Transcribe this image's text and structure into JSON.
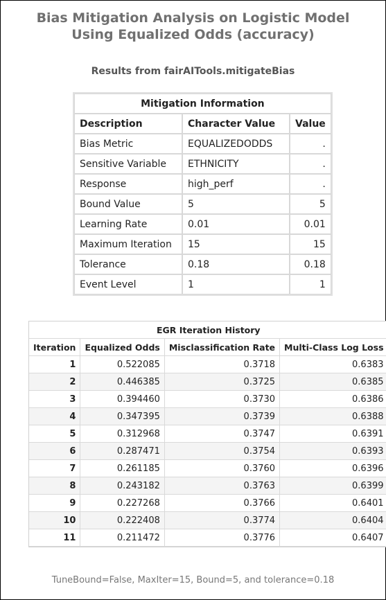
{
  "title_line1": "Bias Mitigation Analysis on Logistic Model",
  "title_line2": "Using Equalized Odds (accuracy)",
  "subtitle": "Results from fairAITools.mitigateBias",
  "mitigation": {
    "caption": "Mitigation Information",
    "headers": [
      "Description",
      "Character Value",
      "Value"
    ],
    "rows": [
      [
        "Bias Metric",
        "EQUALIZEDODDS",
        "."
      ],
      [
        "Sensitive Variable",
        "ETHNICITY",
        "."
      ],
      [
        "Response",
        "high_perf",
        "."
      ],
      [
        "Bound Value",
        "5",
        "5"
      ],
      [
        "Learning Rate",
        "0.01",
        "0.01"
      ],
      [
        "Maximum Iteration",
        "15",
        "15"
      ],
      [
        "Tolerance",
        "0.18",
        "0.18"
      ],
      [
        "Event Level",
        "1",
        "1"
      ]
    ]
  },
  "egr": {
    "caption": "EGR Iteration History",
    "headers": [
      "Iteration",
      "Equalized Odds",
      "Misclassification Rate",
      "Multi-Class Log Loss"
    ],
    "rows": [
      [
        "1",
        "0.522085",
        "0.3718",
        "0.6383"
      ],
      [
        "2",
        "0.446385",
        "0.3725",
        "0.6385"
      ],
      [
        "3",
        "0.394460",
        "0.3730",
        "0.6386"
      ],
      [
        "4",
        "0.347395",
        "0.3739",
        "0.6388"
      ],
      [
        "5",
        "0.312968",
        "0.3747",
        "0.6391"
      ],
      [
        "6",
        "0.287471",
        "0.3754",
        "0.6393"
      ],
      [
        "7",
        "0.261185",
        "0.3760",
        "0.6396"
      ],
      [
        "8",
        "0.243182",
        "0.3763",
        "0.6399"
      ],
      [
        "9",
        "0.227268",
        "0.3766",
        "0.6401"
      ],
      [
        "10",
        "0.222408",
        "0.3774",
        "0.6404"
      ],
      [
        "11",
        "0.211472",
        "0.3776",
        "0.6407"
      ]
    ]
  },
  "footnote": "TuneBound=False, MaxIter=15, Bound=5, and tolerance=0.18"
}
